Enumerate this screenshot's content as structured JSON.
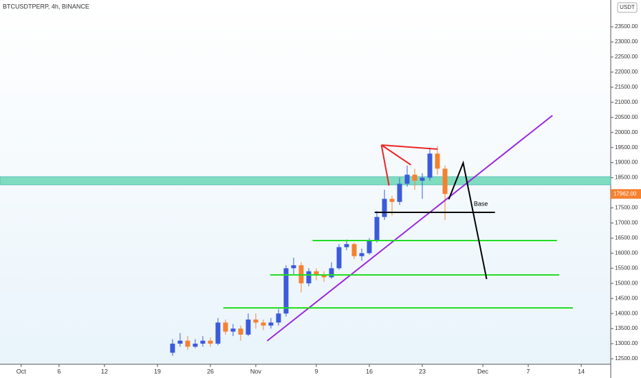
{
  "chart_data": {
    "type": "candlestick",
    "title": "BTCUSDTPERP, 4h, BINANCE",
    "currency": "USDT",
    "up_color": "#3b5bdb",
    "down_color": "#f5812f",
    "xlim": [
      -2.8,
      77.9
    ],
    "ylim": [
      12318,
      24390
    ],
    "xticks": [
      {
        "value": 0,
        "label": "Oct"
      },
      {
        "value": 5,
        "label": "6"
      },
      {
        "value": 11,
        "label": "12"
      },
      {
        "value": 18,
        "label": "19"
      },
      {
        "value": 25,
        "label": "26"
      },
      {
        "value": 31,
        "label": "Nov"
      },
      {
        "value": 39,
        "label": "9"
      },
      {
        "value": 46,
        "label": "16"
      },
      {
        "value": 53,
        "label": "23"
      },
      {
        "value": 61,
        "label": "Dec"
      },
      {
        "value": 67,
        "label": "7"
      },
      {
        "value": 74,
        "label": "14"
      }
    ],
    "yticks": [
      {
        "value": 12500,
        "label": "12500.00"
      },
      {
        "value": 13000,
        "label": "13000.00"
      },
      {
        "value": 13500,
        "label": "13500.00"
      },
      {
        "value": 14000,
        "label": "14000.00"
      },
      {
        "value": 14500,
        "label": "14500.00"
      },
      {
        "value": 15000,
        "label": "15000.00"
      },
      {
        "value": 15500,
        "label": "15500.00"
      },
      {
        "value": 16000,
        "label": "16000.00"
      },
      {
        "value": 16500,
        "label": "16500.00"
      },
      {
        "value": 17000,
        "label": "17000.00"
      },
      {
        "value": 17500,
        "label": "17500.00"
      },
      {
        "value": 18500,
        "label": "18500.00"
      },
      {
        "value": 19000,
        "label": "19000.00"
      },
      {
        "value": 19500,
        "label": "19500.00"
      },
      {
        "value": 20000,
        "label": "20000.00"
      },
      {
        "value": 20500,
        "label": "20500.00"
      },
      {
        "value": 21000,
        "label": "21000.00"
      },
      {
        "value": 21500,
        "label": "21500.00"
      },
      {
        "value": 22000,
        "label": "22000.00"
      },
      {
        "value": 22500,
        "label": "22500.00"
      },
      {
        "value": 23000,
        "label": "23000.00"
      },
      {
        "value": 23500,
        "label": "23500.00"
      }
    ],
    "last_price": {
      "value": 17962,
      "label": "17962.00"
    },
    "x": [
      20,
      21,
      22,
      23,
      24,
      25,
      26,
      27,
      28,
      29,
      30,
      31,
      32,
      33,
      34,
      35,
      36,
      37,
      38,
      39,
      40,
      41,
      42,
      43,
      44,
      45,
      46,
      47,
      48,
      49,
      50,
      51,
      52,
      53,
      54,
      55,
      56
    ],
    "ohlc": [
      [
        12700,
        13150,
        12600,
        13000
      ],
      [
        13000,
        13350,
        12900,
        13100
      ],
      [
        13100,
        13250,
        12800,
        12900
      ],
      [
        12900,
        13150,
        12850,
        13000
      ],
      [
        13000,
        13250,
        12900,
        13100
      ],
      [
        13100,
        13200,
        12900,
        13000
      ],
      [
        13000,
        13850,
        12950,
        13700
      ],
      [
        13700,
        13800,
        13300,
        13400
      ],
      [
        13400,
        13650,
        13250,
        13500
      ],
      [
        13500,
        13600,
        13100,
        13300
      ],
      [
        13300,
        14000,
        13250,
        13800
      ],
      [
        13800,
        14000,
        13500,
        13700
      ],
      [
        13700,
        13800,
        13450,
        13600
      ],
      [
        13600,
        13850,
        13500,
        13700
      ],
      [
        13700,
        14150,
        13600,
        14000
      ],
      [
        14000,
        15600,
        13900,
        15500
      ],
      [
        15500,
        15850,
        15300,
        15600
      ],
      [
        15600,
        15700,
        14700,
        15000
      ],
      [
        15000,
        15500,
        14900,
        15400
      ],
      [
        15400,
        15500,
        15100,
        15300
      ],
      [
        15300,
        15400,
        15050,
        15200
      ],
      [
        15200,
        15700,
        15150,
        15500
      ],
      [
        15500,
        16300,
        15450,
        16200
      ],
      [
        16200,
        16450,
        16100,
        16300
      ],
      [
        16300,
        16350,
        15800,
        15900
      ],
      [
        15900,
        16150,
        15750,
        16000
      ],
      [
        16000,
        16500,
        15950,
        16400
      ],
      [
        16400,
        17400,
        16350,
        17200
      ],
      [
        17200,
        18100,
        17100,
        17800
      ],
      [
        17800,
        17900,
        17250,
        17700
      ],
      [
        17700,
        18500,
        17600,
        18300
      ],
      [
        18300,
        18900,
        18200,
        18600
      ],
      [
        18600,
        18800,
        18100,
        18400
      ],
      [
        18400,
        18650,
        17800,
        18500
      ],
      [
        18500,
        19500,
        18400,
        19300
      ],
      [
        19300,
        19550,
        18600,
        18800
      ],
      [
        18800,
        18900,
        17100,
        17962
      ]
    ],
    "zone": {
      "color": "#7fdcc0",
      "range": [
        18263,
        18536
      ]
    },
    "lines": [
      {
        "color": "#9b27e0",
        "points": [
          [
            32.5,
            13092
          ],
          [
            70.2,
            20564
          ]
        ]
      },
      {
        "color": "#22dd22",
        "points": [
          [
            38.5,
            16418
          ],
          [
            70.8,
            16418
          ]
        ]
      },
      {
        "color": "#22dd22",
        "points": [
          [
            32.9,
            15279
          ],
          [
            71.1,
            15279
          ]
        ]
      },
      {
        "color": "#22dd22",
        "points": [
          [
            26.7,
            14186
          ],
          [
            72.9,
            14186
          ]
        ]
      },
      {
        "color": "#000000",
        "points": [
          [
            46.7,
            17352
          ],
          [
            62.6,
            17352
          ]
        ]
      },
      {
        "color": "#ee2222",
        "points": [
          [
            47.6,
            19584
          ],
          [
            55.0,
            19448
          ]
        ]
      },
      {
        "color": "#ee2222",
        "points": [
          [
            47.6,
            19584
          ],
          [
            51.5,
            18924
          ]
        ]
      },
      {
        "color": "#ee2222",
        "points": [
          [
            47.6,
            19584
          ],
          [
            48.6,
            18240
          ]
        ]
      },
      {
        "color": "#000000",
        "points": [
          [
            56.5,
            17785
          ],
          [
            58.4,
            18992
          ],
          [
            61.5,
            15142
          ]
        ]
      }
    ],
    "annotation": {
      "text": "Base",
      "at": [
        59.8,
        17620
      ]
    }
  }
}
